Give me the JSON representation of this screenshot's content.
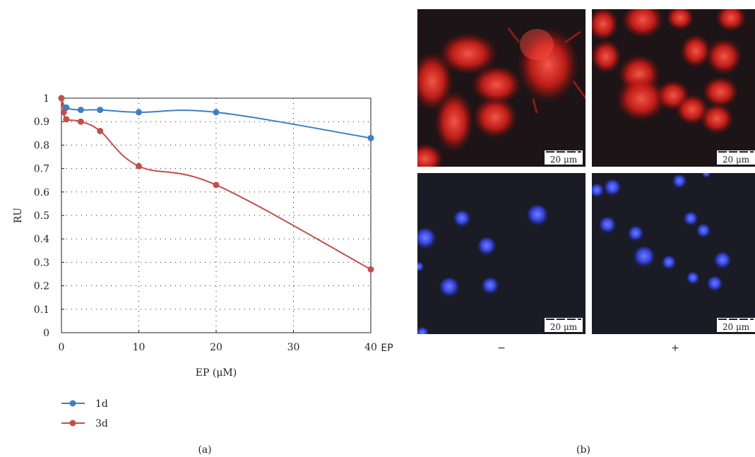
{
  "chart_data": {
    "type": "line",
    "title": "",
    "xlabel": "EP (μM)",
    "ylabel": "RU",
    "xlim": [
      0,
      40
    ],
    "ylim": [
      0,
      1
    ],
    "x_ticks": [
      "0",
      "10",
      "20",
      "30",
      "40"
    ],
    "y_ticks": [
      "0",
      "0.1",
      "0.2",
      "0.3",
      "0.4",
      "0.5",
      "0.6",
      "0.7",
      "0.8",
      "0.9",
      "1"
    ],
    "grid": true,
    "legend_position": "bottom-left",
    "series": [
      {
        "name": "1d",
        "color": "#3f7fc1",
        "x": [
          0,
          0.625,
          2.5,
          5,
          10,
          20,
          40
        ],
        "values": [
          1,
          0.96,
          0.95,
          0.95,
          0.94,
          0.94,
          0.83
        ]
      },
      {
        "name": "3d",
        "color": "#c0504d",
        "x": [
          0,
          0.3,
          0.625,
          2.5,
          5,
          10,
          20,
          40
        ],
        "values": [
          1,
          0.94,
          0.91,
          0.9,
          0.86,
          0.71,
          0.63,
          0.27
        ]
      }
    ]
  },
  "panel_a_label": "(a)",
  "panel_b_label": "(b)",
  "micrographs": {
    "row_label": "EP",
    "col_labels": [
      "−",
      "+"
    ],
    "scale_bar_text": "20 μm",
    "colors": {
      "red_stain": "#e8231e",
      "blue_stain": "#2e3fd6",
      "background": "#1a1a1f"
    }
  }
}
